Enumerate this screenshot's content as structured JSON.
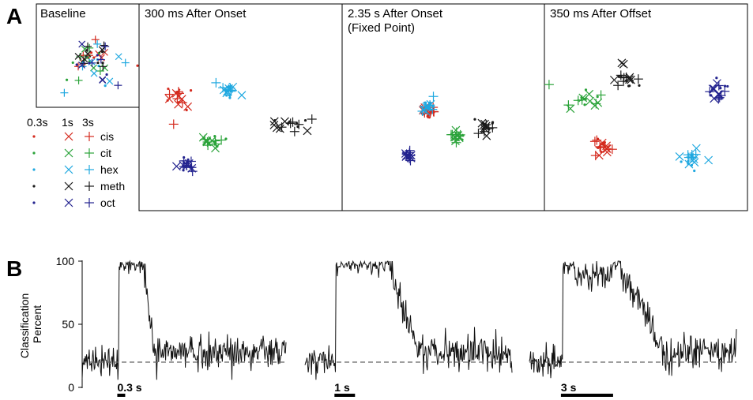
{
  "figure": {
    "panel_a_letter": "A",
    "panel_b_letter": "B"
  },
  "colors": {
    "cis": "#d42a1e",
    "cit": "#2ba33a",
    "hex": "#1fa8e0",
    "meth": "#1a1a1a",
    "oct": "#23238f"
  },
  "legend": {
    "durations": [
      "0.3s",
      "1s",
      "3s"
    ],
    "odors": [
      "cis",
      "cit",
      "hex",
      "meth",
      "oct"
    ]
  },
  "chart_data": [
    {
      "type": "scatter",
      "title": "Baseline",
      "clusters": [
        {
          "odor": "mixed",
          "center": [
            0.55,
            0.5
          ],
          "spread": [
            0.32,
            0.28
          ]
        }
      ]
    },
    {
      "type": "scatter",
      "title": "300 ms After Onset",
      "clusters": [
        {
          "odor": "cis",
          "center": [
            0.18,
            0.38
          ],
          "spread": [
            0.08,
            0.09
          ]
        },
        {
          "odor": "hex",
          "center": [
            0.43,
            0.33
          ],
          "spread": [
            0.06,
            0.05
          ]
        },
        {
          "odor": "meth",
          "center": [
            0.72,
            0.53
          ],
          "spread": [
            0.12,
            0.04
          ]
        },
        {
          "odor": "cit",
          "center": [
            0.36,
            0.63
          ],
          "spread": [
            0.07,
            0.04
          ]
        },
        {
          "odor": "oct",
          "center": [
            0.23,
            0.76
          ],
          "spread": [
            0.05,
            0.05
          ]
        }
      ]
    },
    {
      "type": "scatter",
      "title": "2.35 s After Onset",
      "subtitle": "(Fixed Point)",
      "clusters": [
        {
          "odor": "cis",
          "center": [
            0.42,
            0.43
          ],
          "spread": [
            0.04,
            0.04
          ]
        },
        {
          "odor": "hex",
          "center": [
            0.42,
            0.4
          ],
          "spread": [
            0.03,
            0.05
          ]
        },
        {
          "odor": "cit",
          "center": [
            0.57,
            0.58
          ],
          "spread": [
            0.03,
            0.03
          ]
        },
        {
          "odor": "meth",
          "center": [
            0.71,
            0.53
          ],
          "spread": [
            0.04,
            0.03
          ]
        },
        {
          "odor": "oct",
          "center": [
            0.32,
            0.7
          ],
          "spread": [
            0.02,
            0.03
          ]
        }
      ]
    },
    {
      "type": "scatter",
      "title": "350 ms After Offset",
      "clusters": [
        {
          "odor": "meth",
          "center": [
            0.4,
            0.3
          ],
          "spread": [
            0.07,
            0.07
          ]
        },
        {
          "odor": "cit",
          "center": [
            0.2,
            0.41
          ],
          "spread": [
            0.09,
            0.06
          ]
        },
        {
          "odor": "oct",
          "center": [
            0.87,
            0.38
          ],
          "spread": [
            0.05,
            0.06
          ]
        },
        {
          "odor": "cis",
          "center": [
            0.27,
            0.67
          ],
          "spread": [
            0.06,
            0.05
          ]
        },
        {
          "odor": "hex",
          "center": [
            0.72,
            0.75
          ],
          "spread": [
            0.06,
            0.06
          ]
        }
      ]
    },
    {
      "type": "line",
      "ylabel": "Classification\nPercent",
      "yticks": [
        0,
        50,
        100
      ],
      "ylim": [
        0,
        100
      ],
      "chance_level": 20,
      "traces": [
        {
          "scale_bar": "0.3 s",
          "baseline": 20,
          "peak": 100,
          "stim_on_frac": 0.18,
          "stim_off_frac": 0.3,
          "decay_frac": 0.35
        },
        {
          "scale_bar": "1 s",
          "baseline": 20,
          "peak": 100,
          "stim_on_frac": 0.15,
          "stim_off_frac": 0.4,
          "decay_frac": 0.55
        },
        {
          "scale_bar": "3 s",
          "baseline": 20,
          "peak": 100,
          "stim_on_frac": 0.16,
          "stim_off_frac": 0.42,
          "decay_frac": 0.65
        }
      ]
    }
  ]
}
